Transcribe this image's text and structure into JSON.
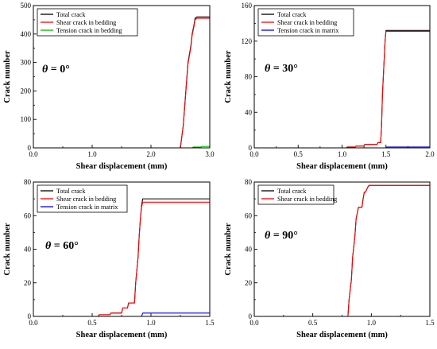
{
  "chart_data": [
    {
      "type": "line",
      "xlabel": "Shear displacement (mm)",
      "ylabel": "Crack number",
      "xlim": [
        0,
        3.0
      ],
      "ylim": [
        0,
        500
      ],
      "xticks": [
        "0.0",
        "1.0",
        "2.0",
        "3.0"
      ],
      "xminor": [
        0.5,
        1.5,
        2.5
      ],
      "yticks": [
        "0",
        "100",
        "200",
        "300",
        "400",
        "500"
      ],
      "yminor": [
        50,
        150,
        250,
        350,
        450
      ],
      "annotation": {
        "sym": "θ",
        "rest": " = 0°"
      },
      "legend_position": "top-left",
      "series": [
        {
          "name": "Total crack",
          "color": "#000000",
          "x": [
            0,
            2.5,
            2.55,
            2.6,
            2.63,
            2.68,
            2.7,
            2.73,
            2.75,
            2.78,
            3.0
          ],
          "y": [
            0,
            0,
            80,
            220,
            300,
            360,
            400,
            430,
            455,
            460,
            460
          ]
        },
        {
          "name": "Shear crack in bedding",
          "color": "#ff0000",
          "x": [
            0,
            2.5,
            2.55,
            2.6,
            2.63,
            2.68,
            2.7,
            2.73,
            2.75,
            2.78,
            3.0
          ],
          "y": [
            0,
            0,
            78,
            215,
            295,
            355,
            395,
            425,
            450,
            455,
            455
          ]
        },
        {
          "name": "Tension crack in bedding",
          "color": "#00bb00",
          "x": [
            0,
            2.7,
            2.72,
            2.85,
            2.87,
            3.0
          ],
          "y": [
            0,
            0,
            3,
            3,
            5,
            5
          ]
        }
      ]
    },
    {
      "type": "line",
      "xlabel": "Shear displacement (mm)",
      "ylabel": "Crack number",
      "xlim": [
        0,
        2.0
      ],
      "ylim": [
        0,
        160
      ],
      "xticks": [
        "0.0",
        "0.5",
        "1.0",
        "1.5",
        "2.0"
      ],
      "xminor": [
        0.25,
        0.75,
        1.25,
        1.75
      ],
      "yticks": [
        "0",
        "40",
        "80",
        "120",
        "160"
      ],
      "yminor": [
        20,
        60,
        100,
        140
      ],
      "annotation": {
        "sym": "θ",
        "rest": " = 30°"
      },
      "legend_position": "top-left",
      "series": [
        {
          "name": "Total crack",
          "color": "#000000",
          "x": [
            0,
            1.05,
            1.06,
            1.15,
            1.16,
            1.25,
            1.26,
            1.4,
            1.41,
            1.44,
            1.45,
            1.46,
            1.47,
            1.48,
            1.49,
            1.5,
            2.0
          ],
          "y": [
            0,
            0,
            1,
            1,
            2,
            2,
            4,
            4,
            6,
            6,
            25,
            60,
            80,
            100,
            120,
            132,
            132
          ]
        },
        {
          "name": "Shear crack in bedding",
          "color": "#ff0000",
          "x": [
            0,
            1.05,
            1.06,
            1.15,
            1.16,
            1.25,
            1.26,
            1.4,
            1.41,
            1.44,
            1.45,
            1.46,
            1.47,
            1.48,
            1.49,
            1.5,
            2.0
          ],
          "y": [
            0,
            0,
            1,
            1,
            2,
            2,
            4,
            4,
            6,
            6,
            25,
            60,
            80,
            100,
            120,
            131,
            131
          ]
        },
        {
          "name": "Tension crack in matrix",
          "color": "#0000ff",
          "x": [
            0,
            1.5,
            1.51,
            2.0
          ],
          "y": [
            0,
            0,
            1,
            1
          ]
        }
      ]
    },
    {
      "type": "line",
      "xlabel": "Shear displacement (mm)",
      "ylabel": "Crack number",
      "xlim": [
        0,
        1.5
      ],
      "ylim": [
        0,
        80
      ],
      "xticks": [
        "0.0",
        "0.5",
        "1.0",
        "1.5"
      ],
      "xminor": [
        0.25,
        0.75,
        1.25
      ],
      "yticks": [
        "0",
        "20",
        "40",
        "60",
        "80"
      ],
      "yminor": [
        10,
        30,
        50,
        70
      ],
      "annotation": {
        "sym": "θ",
        "rest": " = 60°"
      },
      "legend_position": "top-left",
      "series": [
        {
          "name": "Total crack",
          "color": "#000000",
          "x": [
            0,
            0.55,
            0.56,
            0.65,
            0.66,
            0.75,
            0.76,
            0.8,
            0.81,
            0.86,
            0.87,
            0.89,
            0.9,
            0.91,
            0.92,
            0.93,
            1.5
          ],
          "y": [
            0,
            0,
            1,
            1,
            2,
            2,
            5,
            5,
            8,
            8,
            20,
            35,
            48,
            58,
            66,
            70,
            70
          ]
        },
        {
          "name": "Shear crack in bedding",
          "color": "#ff0000",
          "x": [
            0,
            0.55,
            0.56,
            0.65,
            0.66,
            0.75,
            0.76,
            0.8,
            0.81,
            0.86,
            0.87,
            0.89,
            0.9,
            0.91,
            0.92,
            0.93,
            1.5
          ],
          "y": [
            0,
            0,
            1,
            1,
            2,
            2,
            5,
            5,
            8,
            8,
            20,
            35,
            48,
            58,
            65,
            68,
            68
          ]
        },
        {
          "name": "Tension crack in matrix",
          "color": "#0000ff",
          "x": [
            0,
            0.92,
            0.93,
            1.5
          ],
          "y": [
            0,
            0,
            2,
            2
          ]
        }
      ]
    },
    {
      "type": "line",
      "xlabel": "Shear displacement (mm)",
      "ylabel": "Crack number",
      "xlim": [
        0,
        1.5
      ],
      "ylim": [
        0,
        80
      ],
      "xticks": [
        "0.0",
        "0.5",
        "1.0",
        "1.5"
      ],
      "xminor": [
        0.25,
        0.75,
        1.25
      ],
      "yticks": [
        "0",
        "20",
        "40",
        "60",
        "80"
      ],
      "yminor": [
        10,
        30,
        50,
        70
      ],
      "annotation": {
        "sym": "θ",
        "rest": " = 90°"
      },
      "legend_position": "top-left",
      "series": [
        {
          "name": "Total crack",
          "color": "#000000",
          "x": [
            0,
            0.8,
            0.81,
            0.83,
            0.84,
            0.86,
            0.87,
            0.89,
            0.9,
            0.92,
            0.93,
            0.94,
            0.95,
            0.97,
            0.98,
            1.5
          ],
          "y": [
            0,
            0,
            10,
            22,
            35,
            48,
            58,
            65,
            65,
            65,
            70,
            74,
            74,
            77,
            78,
            78
          ]
        },
        {
          "name": "Shear crack in bedding",
          "color": "#ff0000",
          "x": [
            0,
            0.8,
            0.81,
            0.83,
            0.84,
            0.86,
            0.87,
            0.89,
            0.9,
            0.92,
            0.93,
            0.94,
            0.95,
            0.97,
            0.98,
            1.5
          ],
          "y": [
            0,
            0,
            10,
            22,
            35,
            48,
            58,
            65,
            65,
            65,
            70,
            74,
            74,
            77,
            78,
            78
          ]
        }
      ]
    }
  ]
}
